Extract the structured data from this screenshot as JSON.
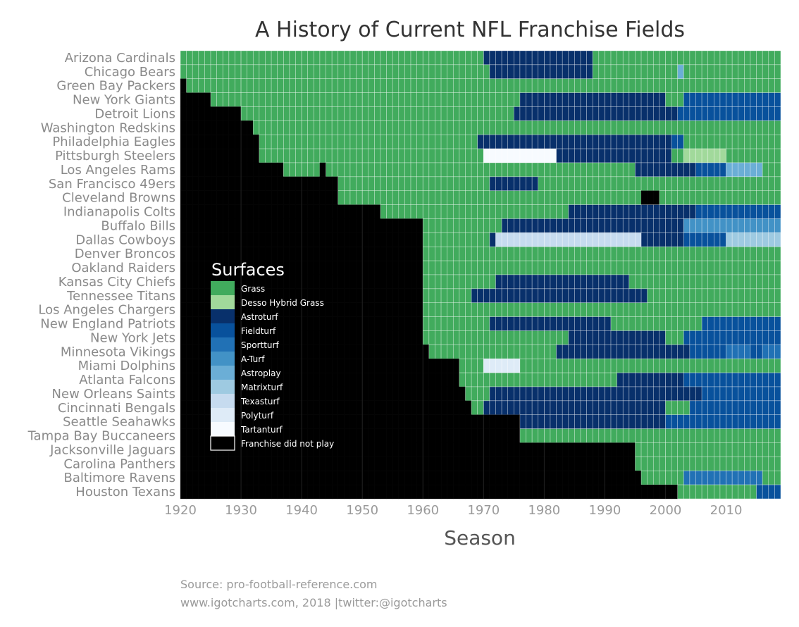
{
  "chart_data": {
    "type": "heatmap",
    "title": "A History of Current NFL Franchise Fields",
    "xlabel": "Season",
    "ylabel": "",
    "xlim": [
      1920,
      2018
    ],
    "x_ticks": [
      1920,
      1930,
      1940,
      1950,
      1960,
      1970,
      1980,
      1990,
      2000,
      2010
    ],
    "legend": {
      "title": "Surfaces",
      "placement": "inside-left",
      "entries": [
        {
          "name": "Grass",
          "color": "#41ab5d"
        },
        {
          "name": "Desso Hybrid Grass",
          "color": "#a1d99b"
        },
        {
          "name": "Astroturf",
          "color": "#08306b"
        },
        {
          "name": "Fieldturf",
          "color": "#08519c"
        },
        {
          "name": "Sportturf",
          "color": "#2171b5"
        },
        {
          "name": "A-Turf",
          "color": "#4292c6"
        },
        {
          "name": "Astroplay",
          "color": "#6baed6"
        },
        {
          "name": "Matrixturf",
          "color": "#9ecae1"
        },
        {
          "name": "Texasturf",
          "color": "#c6dbef"
        },
        {
          "name": "Polyturf",
          "color": "#deebf7"
        },
        {
          "name": "Tartanturf",
          "color": "#f7fbff"
        },
        {
          "name": "Franchise did not play",
          "color": "#000000"
        }
      ]
    },
    "teams": [
      {
        "name": "Arizona Cardinals",
        "segments": [
          [
            1920,
            1969,
            "Grass"
          ],
          [
            1970,
            1987,
            "Astroturf"
          ],
          [
            1988,
            2018,
            "Grass"
          ]
        ]
      },
      {
        "name": "Chicago Bears",
        "segments": [
          [
            1920,
            1970,
            "Grass"
          ],
          [
            1971,
            1987,
            "Astroturf"
          ],
          [
            1988,
            2001,
            "Grass"
          ],
          [
            2002,
            2002,
            "Astroplay"
          ],
          [
            2003,
            2018,
            "Grass"
          ]
        ]
      },
      {
        "name": "Green Bay Packers",
        "segments": [
          [
            1920,
            1920,
            "Franchise did not play"
          ],
          [
            1921,
            2018,
            "Grass"
          ]
        ]
      },
      {
        "name": "New York Giants",
        "segments": [
          [
            1920,
            1924,
            "Franchise did not play"
          ],
          [
            1925,
            1975,
            "Grass"
          ],
          [
            1976,
            1999,
            "Astroturf"
          ],
          [
            2000,
            2002,
            "Grass"
          ],
          [
            2003,
            2018,
            "Fieldturf"
          ]
        ]
      },
      {
        "name": "Detroit Lions",
        "segments": [
          [
            1920,
            1929,
            "Franchise did not play"
          ],
          [
            1930,
            1974,
            "Grass"
          ],
          [
            1975,
            2001,
            "Astroturf"
          ],
          [
            2002,
            2018,
            "Fieldturf"
          ]
        ]
      },
      {
        "name": "Washington Redskins",
        "segments": [
          [
            1920,
            1931,
            "Franchise did not play"
          ],
          [
            1932,
            2018,
            "Grass"
          ]
        ]
      },
      {
        "name": "Philadelphia Eagles",
        "segments": [
          [
            1920,
            1932,
            "Franchise did not play"
          ],
          [
            1933,
            1968,
            "Grass"
          ],
          [
            1969,
            2000,
            "Astroturf"
          ],
          [
            2001,
            2002,
            "Fieldturf"
          ],
          [
            2003,
            2018,
            "Grass"
          ]
        ]
      },
      {
        "name": "Pittsburgh Steelers",
        "segments": [
          [
            1920,
            1932,
            "Franchise did not play"
          ],
          [
            1933,
            1969,
            "Grass"
          ],
          [
            1970,
            1981,
            "Tartanturf"
          ],
          [
            1982,
            2000,
            "Astroturf"
          ],
          [
            2001,
            2002,
            "Grass"
          ],
          [
            2003,
            2009,
            "Desso Hybrid Grass"
          ],
          [
            2010,
            2018,
            "Grass"
          ]
        ]
      },
      {
        "name": "Los Angeles Rams",
        "segments": [
          [
            1920,
            1936,
            "Franchise did not play"
          ],
          [
            1937,
            1942,
            "Grass"
          ],
          [
            1943,
            1943,
            "Franchise did not play"
          ],
          [
            1944,
            1994,
            "Grass"
          ],
          [
            1995,
            2004,
            "Astroturf"
          ],
          [
            2005,
            2009,
            "Fieldturf"
          ],
          [
            2010,
            2015,
            "Astroplay"
          ],
          [
            2016,
            2018,
            "Grass"
          ]
        ]
      },
      {
        "name": "San Francisco 49ers",
        "segments": [
          [
            1920,
            1945,
            "Franchise did not play"
          ],
          [
            1946,
            1970,
            "Grass"
          ],
          [
            1971,
            1978,
            "Astroturf"
          ],
          [
            1979,
            2018,
            "Grass"
          ]
        ]
      },
      {
        "name": "Cleveland Browns",
        "segments": [
          [
            1920,
            1945,
            "Franchise did not play"
          ],
          [
            1946,
            1995,
            "Grass"
          ],
          [
            1996,
            1998,
            "Franchise did not play"
          ],
          [
            1999,
            2018,
            "Grass"
          ]
        ]
      },
      {
        "name": "Indianapolis Colts",
        "segments": [
          [
            1920,
            1952,
            "Franchise did not play"
          ],
          [
            1953,
            1983,
            "Grass"
          ],
          [
            1984,
            2004,
            "Astroturf"
          ],
          [
            2005,
            2018,
            "Fieldturf"
          ]
        ]
      },
      {
        "name": "Buffalo Bills",
        "segments": [
          [
            1920,
            1959,
            "Franchise did not play"
          ],
          [
            1960,
            1972,
            "Grass"
          ],
          [
            1973,
            2002,
            "Astroturf"
          ],
          [
            2003,
            2010,
            "A-Turf"
          ],
          [
            2011,
            2018,
            "A-Turf"
          ]
        ]
      },
      {
        "name": "Dallas Cowboys",
        "segments": [
          [
            1920,
            1959,
            "Franchise did not play"
          ],
          [
            1960,
            1970,
            "Grass"
          ],
          [
            1971,
            1971,
            "Astroturf"
          ],
          [
            1972,
            1995,
            "Texasturf"
          ],
          [
            1996,
            2002,
            "Astroturf"
          ],
          [
            2003,
            2009,
            "Fieldturf"
          ],
          [
            2010,
            2018,
            "Matrixturf"
          ]
        ]
      },
      {
        "name": "Denver Broncos",
        "segments": [
          [
            1920,
            1959,
            "Franchise did not play"
          ],
          [
            1960,
            2018,
            "Grass"
          ]
        ]
      },
      {
        "name": "Oakland Raiders",
        "segments": [
          [
            1920,
            1959,
            "Franchise did not play"
          ],
          [
            1960,
            2018,
            "Grass"
          ]
        ]
      },
      {
        "name": "Kansas City Chiefs",
        "segments": [
          [
            1920,
            1959,
            "Franchise did not play"
          ],
          [
            1960,
            1971,
            "Grass"
          ],
          [
            1972,
            1993,
            "Astroturf"
          ],
          [
            1994,
            2018,
            "Grass"
          ]
        ]
      },
      {
        "name": "Tennessee Titans",
        "segments": [
          [
            1920,
            1959,
            "Franchise did not play"
          ],
          [
            1960,
            1967,
            "Grass"
          ],
          [
            1968,
            1996,
            "Astroturf"
          ],
          [
            1997,
            2018,
            "Grass"
          ]
        ]
      },
      {
        "name": "Los Angeles Chargers",
        "segments": [
          [
            1920,
            1959,
            "Franchise did not play"
          ],
          [
            1960,
            2018,
            "Grass"
          ]
        ]
      },
      {
        "name": "New England Patriots",
        "segments": [
          [
            1920,
            1959,
            "Franchise did not play"
          ],
          [
            1960,
            1970,
            "Grass"
          ],
          [
            1971,
            1990,
            "Astroturf"
          ],
          [
            1991,
            2005,
            "Grass"
          ],
          [
            2006,
            2018,
            "Fieldturf"
          ]
        ]
      },
      {
        "name": "New York Jets",
        "segments": [
          [
            1920,
            1959,
            "Franchise did not play"
          ],
          [
            1960,
            1983,
            "Grass"
          ],
          [
            1984,
            1999,
            "Astroturf"
          ],
          [
            2000,
            2002,
            "Grass"
          ],
          [
            2003,
            2018,
            "Fieldturf"
          ]
        ]
      },
      {
        "name": "Minnesota Vikings",
        "segments": [
          [
            1920,
            1960,
            "Franchise did not play"
          ],
          [
            1961,
            1981,
            "Grass"
          ],
          [
            1982,
            2003,
            "Astroturf"
          ],
          [
            2004,
            2009,
            "Fieldturf"
          ],
          [
            2010,
            2013,
            "Sportturf"
          ],
          [
            2014,
            2015,
            "Fieldturf"
          ],
          [
            2016,
            2018,
            "Sportturf"
          ]
        ]
      },
      {
        "name": "Miami Dolphins",
        "segments": [
          [
            1920,
            1965,
            "Franchise did not play"
          ],
          [
            1966,
            1969,
            "Grass"
          ],
          [
            1970,
            1975,
            "Polyturf"
          ],
          [
            1976,
            2018,
            "Grass"
          ]
        ]
      },
      {
        "name": "Atlanta Falcons",
        "segments": [
          [
            1920,
            1965,
            "Franchise did not play"
          ],
          [
            1966,
            1991,
            "Grass"
          ],
          [
            1992,
            2002,
            "Astroturf"
          ],
          [
            2003,
            2018,
            "Fieldturf"
          ]
        ]
      },
      {
        "name": "New Orleans Saints",
        "segments": [
          [
            1920,
            1966,
            "Franchise did not play"
          ],
          [
            1967,
            1970,
            "Grass"
          ],
          [
            1971,
            2005,
            "Astroturf"
          ],
          [
            2006,
            2018,
            "Fieldturf"
          ]
        ]
      },
      {
        "name": "Cincinnati Bengals",
        "segments": [
          [
            1920,
            1967,
            "Franchise did not play"
          ],
          [
            1968,
            1969,
            "Grass"
          ],
          [
            1970,
            1999,
            "Astroturf"
          ],
          [
            2000,
            2003,
            "Grass"
          ],
          [
            2004,
            2018,
            "Fieldturf"
          ]
        ]
      },
      {
        "name": "Seattle Seahawks",
        "segments": [
          [
            1920,
            1975,
            "Franchise did not play"
          ],
          [
            1976,
            1999,
            "Astroturf"
          ],
          [
            2000,
            2018,
            "Fieldturf"
          ]
        ]
      },
      {
        "name": "Tampa Bay Buccaneers",
        "segments": [
          [
            1920,
            1975,
            "Franchise did not play"
          ],
          [
            1976,
            2018,
            "Grass"
          ]
        ]
      },
      {
        "name": "Jacksonville Jaguars",
        "segments": [
          [
            1920,
            1994,
            "Franchise did not play"
          ],
          [
            1995,
            2018,
            "Grass"
          ]
        ]
      },
      {
        "name": "Carolina Panthers",
        "segments": [
          [
            1920,
            1994,
            "Franchise did not play"
          ],
          [
            1995,
            2018,
            "Grass"
          ]
        ]
      },
      {
        "name": "Baltimore Ravens",
        "segments": [
          [
            1920,
            1995,
            "Franchise did not play"
          ],
          [
            1996,
            2002,
            "Grass"
          ],
          [
            2003,
            2009,
            "Sportturf"
          ],
          [
            2010,
            2015,
            "Sportturf"
          ],
          [
            2016,
            2018,
            "Grass"
          ]
        ]
      },
      {
        "name": "Houston Texans",
        "segments": [
          [
            1920,
            2001,
            "Franchise did not play"
          ],
          [
            2002,
            2014,
            "Grass"
          ],
          [
            2015,
            2018,
            "Fieldturf"
          ]
        ]
      }
    ]
  },
  "footer": {
    "source": "Source: pro-football-reference.com",
    "credit": "www.igotcharts.com, 2018 |twitter:@igotcharts"
  }
}
